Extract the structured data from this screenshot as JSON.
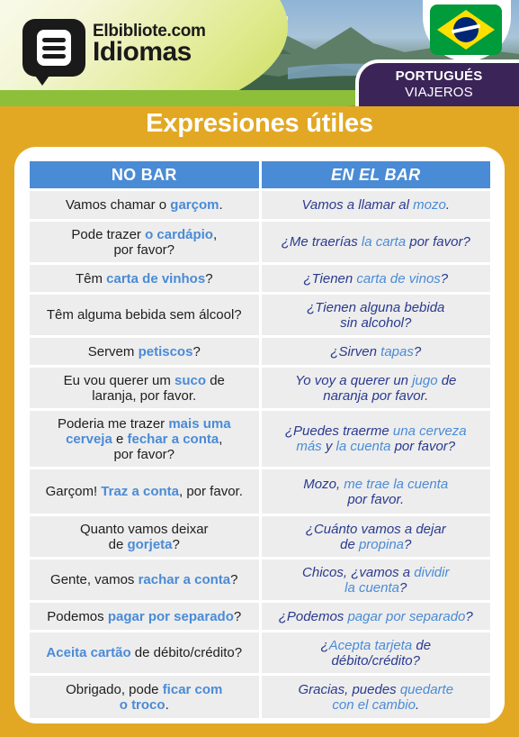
{
  "brand": {
    "site": "Elbibliote.com",
    "product": "Idiomas"
  },
  "language_badge": {
    "language": "PORTUGUÉS",
    "topic": "VIAJEROS"
  },
  "title": "Expresiones útiles",
  "table": {
    "headers": [
      "NO BAR",
      "EN EL BAR"
    ],
    "rows": [
      {
        "pt": [
          {
            "t": "Vamos chamar o "
          },
          {
            "t": "garçom",
            "hl": true
          },
          {
            "t": "."
          }
        ],
        "es": [
          {
            "t": "Vamos a llamar al "
          },
          {
            "t": "mozo",
            "hl": true
          },
          {
            "t": "."
          }
        ]
      },
      {
        "pt": [
          {
            "t": "Pode trazer "
          },
          {
            "t": "o cardápio",
            "hl": true
          },
          {
            "t": ","
          },
          {
            "br": true
          },
          {
            "t": "por favor?"
          }
        ],
        "es": [
          {
            "t": "¿Me traerías "
          },
          {
            "t": "la carta",
            "hl": true
          },
          {
            "t": " por favor?"
          }
        ]
      },
      {
        "pt": [
          {
            "t": "Têm "
          },
          {
            "t": "carta de vinhos",
            "hl": true
          },
          {
            "t": "?"
          }
        ],
        "es": [
          {
            "t": "¿Tienen "
          },
          {
            "t": "carta de vinos",
            "hl": true
          },
          {
            "t": "?"
          }
        ]
      },
      {
        "pt": [
          {
            "t": "Têm alguma bebida sem álcool?"
          }
        ],
        "es": [
          {
            "t": "¿Tienen alguna bebida"
          },
          {
            "br": true
          },
          {
            "t": "sin alcohol?"
          }
        ]
      },
      {
        "pt": [
          {
            "t": "Servem "
          },
          {
            "t": "petiscos",
            "hl": true
          },
          {
            "t": "?"
          }
        ],
        "es": [
          {
            "t": "¿Sirven "
          },
          {
            "t": "tapas",
            "hl": true
          },
          {
            "t": "?"
          }
        ]
      },
      {
        "pt": [
          {
            "t": "Eu vou querer um "
          },
          {
            "t": "suco",
            "hl": true
          },
          {
            "t": " de"
          },
          {
            "br": true
          },
          {
            "t": "laranja, por favor."
          }
        ],
        "es": [
          {
            "t": "Yo voy a querer un "
          },
          {
            "t": "jugo",
            "hl": true
          },
          {
            "t": " de"
          },
          {
            "br": true
          },
          {
            "t": "naranja por favor."
          }
        ]
      },
      {
        "pt": [
          {
            "t": "Poderia me trazer "
          },
          {
            "t": "mais uma",
            "hl": true
          },
          {
            "br": true
          },
          {
            "t": "cerveja",
            "hl": true
          },
          {
            "t": " e "
          },
          {
            "t": "fechar a conta",
            "hl": true
          },
          {
            "t": ","
          },
          {
            "br": true
          },
          {
            "t": "por favor?"
          }
        ],
        "es": [
          {
            "t": "¿Puedes traerme "
          },
          {
            "t": "una cerveza",
            "hl": true
          },
          {
            "br": true
          },
          {
            "t": "más",
            "hl": true
          },
          {
            "t": " y "
          },
          {
            "t": "la cuenta",
            "hl": true
          },
          {
            "t": " por favor?"
          }
        ]
      },
      {
        "pt": [
          {
            "t": "Garçom! "
          },
          {
            "t": "Traz a conta",
            "hl": true
          },
          {
            "t": ", por favor."
          }
        ],
        "es": [
          {
            "t": "Mozo, "
          },
          {
            "t": "me trae la cuenta",
            "hl": true
          },
          {
            "br": true
          },
          {
            "t": "por favor."
          }
        ]
      },
      {
        "pt": [
          {
            "t": "Quanto vamos deixar"
          },
          {
            "br": true
          },
          {
            "t": "de "
          },
          {
            "t": "gorjeta",
            "hl": true
          },
          {
            "t": "?"
          }
        ],
        "es": [
          {
            "t": "¿Cuánto vamos a dejar"
          },
          {
            "br": true
          },
          {
            "t": "de "
          },
          {
            "t": "propina",
            "hl": true
          },
          {
            "t": "?"
          }
        ]
      },
      {
        "pt": [
          {
            "t": "Gente, vamos "
          },
          {
            "t": "rachar a conta",
            "hl": true
          },
          {
            "t": "?"
          }
        ],
        "es": [
          {
            "t": "Chicos, ¿vamos a "
          },
          {
            "t": "dividir",
            "hl": true
          },
          {
            "br": true
          },
          {
            "t": "la cuenta",
            "hl": true
          },
          {
            "t": "?"
          }
        ]
      },
      {
        "pt": [
          {
            "t": "Podemos "
          },
          {
            "t": "pagar por separado",
            "hl": true
          },
          {
            "t": "?"
          }
        ],
        "es": [
          {
            "t": "¿Podemos "
          },
          {
            "t": "pagar por separado",
            "hl": true
          },
          {
            "t": "?"
          }
        ]
      },
      {
        "pt": [
          {
            "t": "Aceita cartão",
            "hl": true
          },
          {
            "t": " de débito/crédito?"
          }
        ],
        "es": [
          {
            "t": "¿"
          },
          {
            "t": "Acepta tarjeta",
            "hl": true
          },
          {
            "t": " de"
          },
          {
            "br": true
          },
          {
            "t": "débito/crédito?"
          }
        ]
      },
      {
        "pt": [
          {
            "t": "Obrigado, pode "
          },
          {
            "t": "ficar com",
            "hl": true
          },
          {
            "br": true
          },
          {
            "t": "o troco",
            "hl": true
          },
          {
            "t": "."
          }
        ],
        "es": [
          {
            "t": "Gracias, puedes "
          },
          {
            "t": "quedarte",
            "hl": true
          },
          {
            "br": true
          },
          {
            "t": "con el cambio",
            "hl": true
          },
          {
            "t": "."
          }
        ]
      }
    ]
  },
  "colors": {
    "background": "#E3A823",
    "header_blue": "#4A8BD6",
    "highlight": "#4A8BD6",
    "spanish_text": "#2A3A8F",
    "badge_purple": "#3B2458"
  }
}
